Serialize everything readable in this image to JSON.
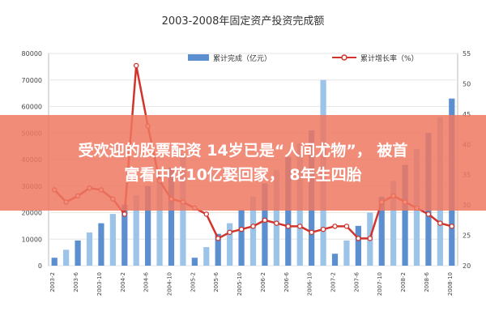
{
  "banner": {
    "line1": "受欢迎的股票配资 14岁已是“人间尤物”， 被首",
    "line2": "富看中花10亿娶回家， 8年生四胎"
  },
  "chart_data": {
    "type": "bar+line",
    "title": "2003-2008年固定资产投资完成额",
    "legend": [
      "累计完成（亿元）",
      "累计增长率（%）"
    ],
    "left_axis": {
      "ylim": [
        0,
        80000
      ],
      "ticks": [
        "0",
        "10000",
        "20000",
        "30000",
        "40000",
        "50000",
        "60000",
        "70000",
        "80000"
      ]
    },
    "right_axis": {
      "ylim": [
        20,
        55
      ],
      "ticks": [
        "20",
        "25",
        "30",
        "35",
        "40",
        "45",
        "50",
        "55"
      ]
    },
    "x_labels": [
      "2003-2",
      "2003-4",
      "2003-6",
      "2003-8",
      "2003-10",
      "2003-12",
      "2004-2",
      "2004-4",
      "2004-6",
      "2004-8",
      "2004-10",
      "2004-12",
      "2005-2",
      "2005-4",
      "2005-6",
      "2005-8",
      "2005-10",
      "2005-12",
      "2006-2",
      "2006-4",
      "2006-6",
      "2006-8",
      "2006-10",
      "2006-12",
      "2007-2",
      "2007-4",
      "2007-6",
      "2007-8",
      "2007-10",
      "2007-12",
      "2008-2",
      "2008-4",
      "2008-6",
      "2008-8",
      "2008-10"
    ],
    "series": [
      {
        "name": "累计完成（亿元）",
        "type": "bar",
        "values": [
          3000,
          6000,
          9500,
          12500,
          16000,
          19500,
          23000,
          26500,
          30000,
          33500,
          37000,
          42000,
          3000,
          7000,
          12000,
          16000,
          21000,
          26000,
          31000,
          36000,
          41000,
          46000,
          51000,
          70000,
          4500,
          9500,
          15000,
          20000,
          26000,
          32000,
          38000,
          44000,
          50000,
          56000,
          63000
        ]
      },
      {
        "name": "累计增长率（%）",
        "type": "line",
        "values": [
          32.5,
          30.5,
          31.5,
          32.8,
          32.5,
          31.0,
          28.5,
          53.0,
          43.0,
          34.0,
          31.0,
          30.5,
          29.5,
          28.5,
          24.5,
          25.5,
          26.0,
          26.5,
          27.5,
          27.0,
          26.5,
          26.5,
          25.5,
          26.0,
          26.5,
          26.5,
          24.5,
          24.5,
          30.5,
          31.5,
          30.5,
          29.5,
          28.5,
          27.0,
          26.5
        ]
      }
    ]
  }
}
